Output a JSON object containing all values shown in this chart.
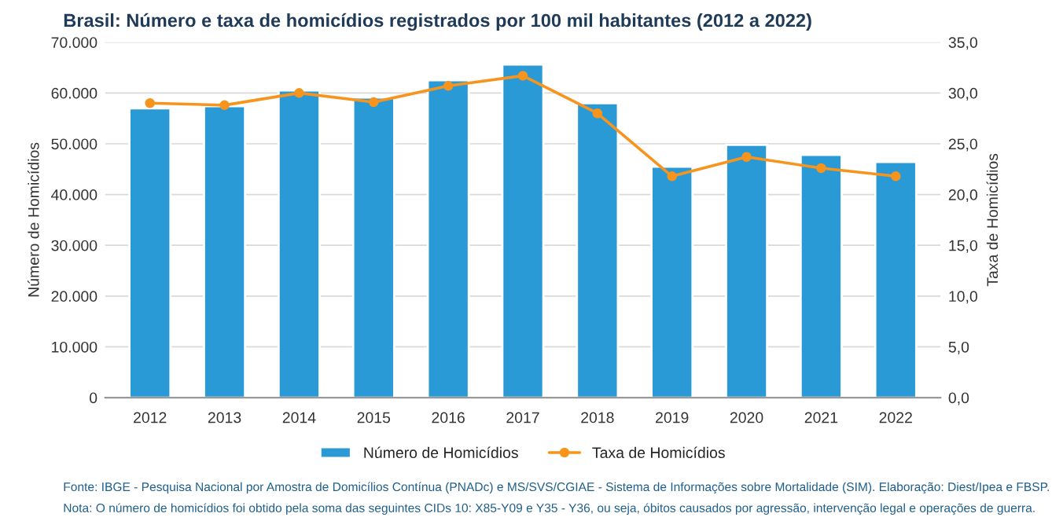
{
  "chart_data": {
    "type": "bar",
    "title": "Brasil: Número e taxa de homicídios registrados por 100 mil habitantes (2012 a 2022)",
    "categories": [
      "2012",
      "2013",
      "2014",
      "2015",
      "2016",
      "2017",
      "2018",
      "2019",
      "2020",
      "2021",
      "2022"
    ],
    "series": [
      {
        "name": "Número de Homicídios",
        "color": "#2a9ad6",
        "values": [
          57000,
          57400,
          60500,
          59100,
          62500,
          65600,
          58000,
          45500,
          49800,
          47800,
          46400
        ]
      },
      {
        "name": "Taxa de Homicídios",
        "type": "line",
        "axis": "y2",
        "color": "#f7941d",
        "marker": "circle",
        "values": [
          29.0,
          28.8,
          30.0,
          29.1,
          30.7,
          31.7,
          28.0,
          21.8,
          23.7,
          22.6,
          21.8
        ]
      }
    ],
    "ylabel": "Número de Homicídios",
    "y2label": "Taxa de Homicídios",
    "ylim": [
      0,
      70000
    ],
    "yticks": [
      {
        "value": 0,
        "label": "0"
      },
      {
        "value": 10000,
        "label": "10.000"
      },
      {
        "value": 20000,
        "label": "20.000"
      },
      {
        "value": 30000,
        "label": "30.000"
      },
      {
        "value": 40000,
        "label": "40.000"
      },
      {
        "value": 50000,
        "label": "50.000"
      },
      {
        "value": 60000,
        "label": "60.000"
      },
      {
        "value": 70000,
        "label": "70.000"
      }
    ],
    "y2lim": [
      0,
      35
    ],
    "y2ticks": [
      {
        "value": 0,
        "label": "0,0"
      },
      {
        "value": 5,
        "label": "5,0"
      },
      {
        "value": 10,
        "label": "10,0"
      },
      {
        "value": 15,
        "label": "15,0"
      },
      {
        "value": 20,
        "label": "20,0"
      },
      {
        "value": 25,
        "label": "25,0"
      },
      {
        "value": 30,
        "label": "30,0"
      },
      {
        "value": 35,
        "label": "35,0"
      }
    ],
    "grid": "y",
    "legend": "bottom",
    "annotations": [
      "Fonte: IBGE - Pesquisa Nacional por Amostra de Domicílios Contínua (PNADc) e MS/SVS/CGIAE - Sistema de Informações sobre Mortalidade (SIM). Elaboração: Diest/Ipea e FBSP.",
      "Nota: O número de homicídios foi obtido pela soma das seguintes CIDs 10: X85-Y09 e Y35 - Y36, ou seja, óbitos causados por agressão, intervenção legal e operações de guerra."
    ]
  }
}
